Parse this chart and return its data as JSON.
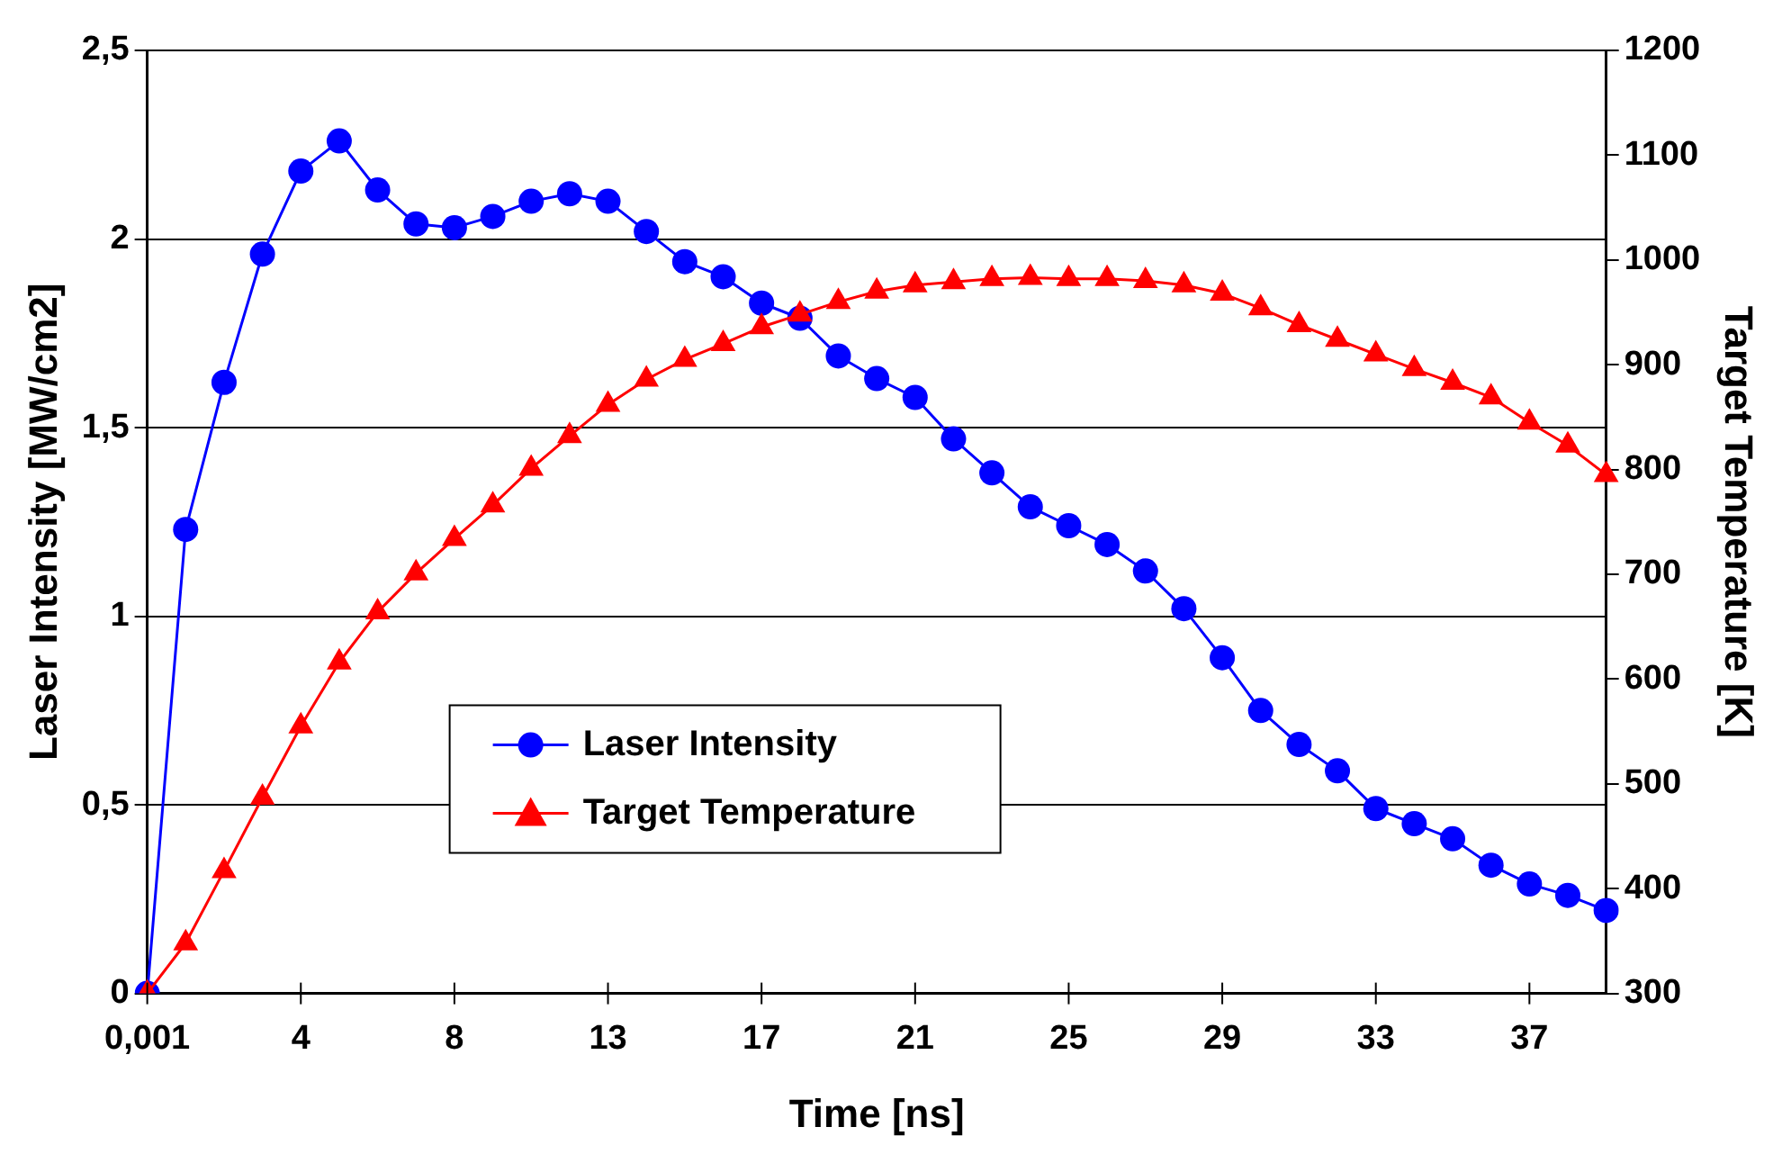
{
  "chart_data": {
    "type": "line",
    "xlabel": "Time [ns]",
    "ylabel": "Laser Intensity [MW/cm2]",
    "y2label": "Target Temperature [K]",
    "categories": [
      "0,001",
      null,
      null,
      null,
      "4",
      null,
      null,
      null,
      "8",
      null,
      null,
      null,
      "13",
      null,
      null,
      null,
      "17",
      null,
      null,
      null,
      "21",
      null,
      null,
      null,
      "25",
      null,
      null,
      null,
      "29",
      null,
      null,
      null,
      "33",
      null,
      null,
      null,
      "37",
      null,
      null
    ],
    "series": [
      {
        "name": "Laser Intensity",
        "color": "#0000ff",
        "marker": "circle",
        "values": [
          0,
          1.23,
          1.62,
          1.96,
          2.18,
          2.26,
          2.13,
          2.04,
          2.03,
          2.06,
          2.1,
          2.12,
          2.1,
          2.02,
          1.94,
          1.9,
          1.83,
          1.79,
          1.69,
          1.63,
          1.58,
          1.47,
          1.38,
          1.29,
          1.24,
          1.19,
          1.12,
          1.02,
          0.89,
          0.75,
          0.66,
          0.59,
          0.49,
          0.45,
          0.41,
          0.34,
          0.29,
          0.26,
          0.22
        ]
      },
      {
        "name": "Target Temperature",
        "color": "#ff0000",
        "marker": "triangle",
        "axis": "y2",
        "values": [
          300,
          348,
          417,
          487,
          555,
          616,
          664,
          701,
          734,
          766,
          801,
          832,
          862,
          886,
          905,
          920,
          936,
          948,
          960,
          970,
          976,
          979,
          982,
          983,
          982,
          982,
          980,
          976,
          968,
          954,
          938,
          924,
          910,
          896,
          883,
          869,
          845,
          823,
          795
        ]
      }
    ],
    "ylim": [
      0,
      2.5
    ],
    "yticks": [
      0,
      {
        "value": 0.5,
        "label": "0,5"
      },
      1,
      {
        "value": 1.5,
        "label": "1,5"
      },
      2,
      {
        "value": 2.5,
        "label": "2,5"
      }
    ],
    "y2lim": [
      300,
      1200
    ],
    "y2ticks": [
      300,
      400,
      500,
      600,
      700,
      800,
      900,
      1000,
      1100,
      1200
    ],
    "grid": "y",
    "legend": "bottom left",
    "line_style": "solid"
  }
}
